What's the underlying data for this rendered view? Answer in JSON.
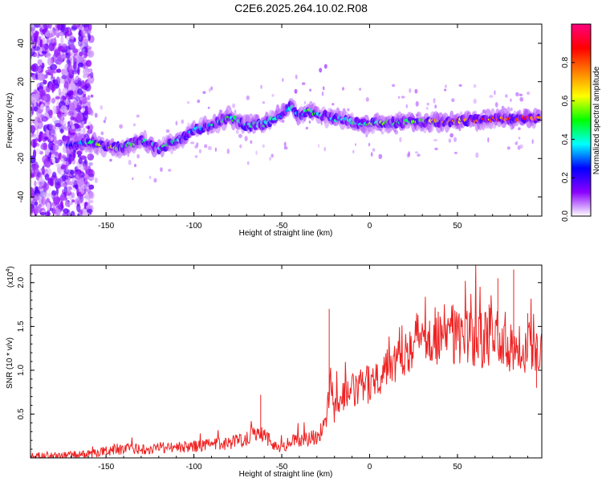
{
  "chart_data": [
    {
      "type": "heatmap",
      "title": "C2E6.2025.264.10.02.R08",
      "xlabel": "Height of straight line (km)",
      "ylabel": "Frequency (Hz)",
      "xlim": [
        -193,
        98
      ],
      "ylim": [
        -50,
        50
      ],
      "xticks": [
        -150,
        -100,
        -50,
        0,
        50
      ],
      "yticks": [
        -40,
        -20,
        0,
        20,
        40
      ],
      "colorbar": {
        "label": "Normalized spectral amplitude",
        "range": [
          0,
          1
        ],
        "ticks": [
          0.0,
          0.2,
          0.4,
          0.6,
          0.8
        ],
        "tick_labels": [
          "0.0",
          "0.2",
          "0.4",
          "0.6",
          "0.8"
        ],
        "colormap": [
          "#ffffff",
          "#8b00ff",
          "#0000ff",
          "#00ffff",
          "#00ff00",
          "#ffff00",
          "#ff8000",
          "#ff0000",
          "#ff0080"
        ]
      },
      "ridge": {
        "x": [
          -170,
          -160,
          -150,
          -140,
          -130,
          -120,
          -110,
          -100,
          -90,
          -80,
          -70,
          -60,
          -50,
          -45,
          -40,
          -35,
          -30,
          -20,
          -10,
          0,
          20,
          40,
          60,
          80,
          95
        ],
        "freq": [
          -13,
          -11,
          -14,
          -14,
          -10,
          -15,
          -11,
          -5,
          -3,
          2,
          -3,
          -2,
          3,
          7,
          2,
          5,
          3,
          1,
          -1,
          -2,
          -1,
          -1,
          0,
          1,
          1
        ],
        "amplitude": [
          0.3,
          0.45,
          0.7,
          0.55,
          0.5,
          0.45,
          0.45,
          0.4,
          0.45,
          0.5,
          0.45,
          0.45,
          0.4,
          0.45,
          0.4,
          0.55,
          0.5,
          0.45,
          0.5,
          0.55,
          0.6,
          0.7,
          0.9,
          1.0,
          1.0
        ]
      }
    },
    {
      "type": "line",
      "xlabel": "Height of straight line (km)",
      "ylabel": "SNR (10 * v/v)",
      "y_multiplier": "(x10",
      "y_multiplier_exp": "4",
      "y_multiplier_close": ")",
      "xlim": [
        -193,
        98
      ],
      "ylim": [
        0,
        2.2
      ],
      "xticks": [
        -150,
        -100,
        -50,
        0,
        50
      ],
      "yticks": [
        0.5,
        1.0,
        1.5,
        2.0
      ],
      "ytick_labels": [
        "0.5",
        "1.0",
        "1.5",
        "2.0"
      ],
      "series": [
        {
          "name": "SNR",
          "color": "#ee2222",
          "x": [
            -193,
            -180,
            -170,
            -160,
            -150,
            -140,
            -130,
            -120,
            -110,
            -100,
            -90,
            -80,
            -75,
            -70,
            -65,
            -60,
            -55,
            -50,
            -45,
            -40,
            -35,
            -30,
            -25,
            -22,
            -20,
            -15,
            -10,
            -5,
            0,
            5,
            10,
            15,
            20,
            25,
            30,
            35,
            40,
            45,
            50,
            55,
            60,
            65,
            70,
            75,
            80,
            85,
            90,
            95,
            98
          ],
          "y": [
            0.02,
            0.02,
            0.03,
            0.04,
            0.08,
            0.1,
            0.1,
            0.12,
            0.12,
            0.13,
            0.15,
            0.17,
            0.2,
            0.23,
            0.3,
            0.28,
            0.15,
            0.12,
            0.18,
            0.2,
            0.22,
            0.25,
            0.35,
            0.9,
            0.55,
            0.7,
            0.75,
            0.8,
            0.85,
            0.95,
            1.1,
            1.15,
            1.25,
            1.35,
            1.38,
            1.45,
            1.4,
            1.42,
            1.4,
            1.38,
            1.35,
            1.32,
            1.4,
            1.38,
            1.3,
            1.3,
            1.28,
            1.25,
            1.25
          ],
          "spikes": [
            {
              "x": -23,
              "y": 1.7
            },
            {
              "x": -62,
              "y": 0.72
            },
            {
              "x": 68,
              "y": 1.75
            },
            {
              "x": 73,
              "y": 2.05
            },
            {
              "x": 82,
              "y": 2.15
            },
            {
              "x": 90,
              "y": 1.65
            },
            {
              "x": 95,
              "y": 0.8
            }
          ]
        }
      ]
    }
  ]
}
